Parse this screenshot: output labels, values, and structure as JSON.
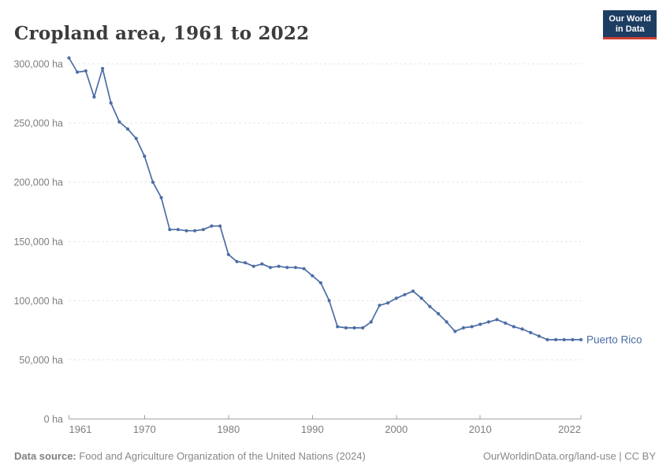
{
  "header": {
    "title": "Cropland area, 1961 to 2022",
    "logo": {
      "line1": "Our World",
      "line2": "in Data"
    }
  },
  "chart_data": {
    "type": "line",
    "title": "Cropland area, 1961 to 2022",
    "xlabel": "",
    "ylabel": "",
    "unit": "ha",
    "grid": "horizontal-dashed",
    "legend_position": "end-of-line-label",
    "xlim": [
      1961,
      2022
    ],
    "ylim": [
      0,
      300000
    ],
    "x_ticks": [
      1961,
      1970,
      1980,
      1990,
      2000,
      2010,
      2022
    ],
    "y_ticks": [
      0,
      50000,
      100000,
      150000,
      200000,
      250000,
      300000
    ],
    "series": [
      {
        "name": "Puerto Rico",
        "color": "#4d6da5",
        "x": [
          1961,
          1962,
          1963,
          1964,
          1965,
          1966,
          1967,
          1968,
          1969,
          1970,
          1971,
          1972,
          1973,
          1974,
          1975,
          1976,
          1977,
          1978,
          1979,
          1980,
          1981,
          1982,
          1983,
          1984,
          1985,
          1986,
          1987,
          1988,
          1989,
          1990,
          1991,
          1992,
          1993,
          1994,
          1995,
          1996,
          1997,
          1998,
          1999,
          2000,
          2001,
          2002,
          2003,
          2004,
          2005,
          2006,
          2007,
          2008,
          2009,
          2010,
          2011,
          2012,
          2013,
          2014,
          2015,
          2016,
          2017,
          2018,
          2019,
          2020,
          2021,
          2022
        ],
        "values": [
          305000,
          293000,
          294000,
          272000,
          296000,
          267000,
          251000,
          245000,
          237000,
          222000,
          200000,
          187000,
          160000,
          160000,
          159000,
          159000,
          160000,
          163000,
          163000,
          139000,
          133000,
          132000,
          129000,
          131000,
          128000,
          129000,
          128000,
          128000,
          127000,
          121000,
          115000,
          100000,
          78000,
          77000,
          77000,
          77000,
          82000,
          96000,
          98000,
          102000,
          105000,
          108000,
          102000,
          95000,
          89000,
          82000,
          74000,
          77000,
          78000,
          80000,
          82000,
          84000,
          81000,
          78000,
          76000,
          73000,
          70000,
          67000,
          67000,
          67000,
          67000,
          67000
        ]
      }
    ]
  },
  "footer": {
    "source_label": "Data source:",
    "source_text": " Food and Agriculture Organization of the United Nations (2024)",
    "link_text": "OurWorldinData.org/land-use | CC BY"
  },
  "colors": {
    "line": "#4d6da5",
    "gridline": "#dbdbdb",
    "axis": "#a1a1a1",
    "tick_label": "#7e7e7e",
    "title": "#3c3c3c",
    "footer": "#888888",
    "logo_bg": "#1d3d63",
    "logo_accent": "#d13e32"
  }
}
